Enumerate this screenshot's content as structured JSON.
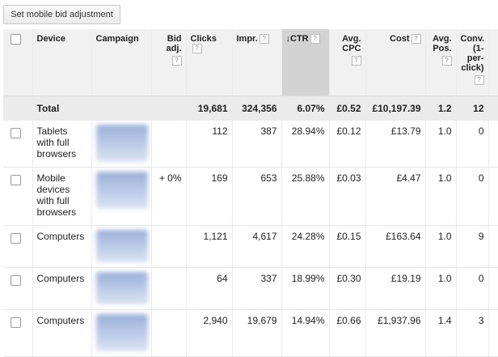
{
  "toolbar": {
    "bid_button": "Set mobile bid adjustment"
  },
  "headers": {
    "device": "Device",
    "campaign": "Campaign",
    "bid_adj": "Bid adj.",
    "clicks": "Clicks",
    "impr": "Impr.",
    "ctr_arrow": "↓",
    "ctr": "CTR",
    "avg_cpc": "Avg. CPC",
    "cost": "Cost",
    "avg_pos": "Avg. Pos.",
    "conv": "Conv. (1-per-click)",
    "help": "?"
  },
  "sort": {
    "column": "CTR",
    "direction": "descending"
  },
  "total": {
    "label": "Total",
    "clicks": "19,681",
    "impr": "324,356",
    "ctr": "6.07%",
    "avg_cpc": "£0.52",
    "cost": "£10,197.39",
    "avg_pos": "1.2",
    "conv": "12"
  },
  "rows": [
    {
      "device": "Tablets with full browsers",
      "bid_adj": "",
      "clicks": "112",
      "impr": "387",
      "ctr": "28.94%",
      "avg_cpc": "£0.12",
      "cost": "£13.79",
      "avg_pos": "1.0",
      "conv": "0"
    },
    {
      "device": "Mobile devices with full browsers",
      "bid_adj": "+ 0%",
      "clicks": "169",
      "impr": "653",
      "ctr": "25.88%",
      "avg_cpc": "£0.03",
      "cost": "£4.47",
      "avg_pos": "1.0",
      "conv": "0"
    },
    {
      "device": "Computers",
      "bid_adj": "",
      "clicks": "1,121",
      "impr": "4,617",
      "ctr": "24.28%",
      "avg_cpc": "£0.15",
      "cost": "£163.64",
      "avg_pos": "1.0",
      "conv": "9"
    },
    {
      "device": "Computers",
      "bid_adj": "",
      "clicks": "64",
      "impr": "337",
      "ctr": "18.99%",
      "avg_cpc": "£0.30",
      "cost": "£19.19",
      "avg_pos": "1.0",
      "conv": "0"
    },
    {
      "device": "Computers",
      "bid_adj": "",
      "clicks": "2,940",
      "impr": "19,679",
      "ctr": "14.94%",
      "avg_cpc": "£0.66",
      "cost": "£1,937.96",
      "avg_pos": "1.4",
      "conv": "3"
    }
  ],
  "colors": {
    "header_bg": "#f1f1f1",
    "sorted_header_bg": "#d3d3d3",
    "total_bg": "#ebebeb",
    "campaign_blur": "#8fa8d6"
  }
}
